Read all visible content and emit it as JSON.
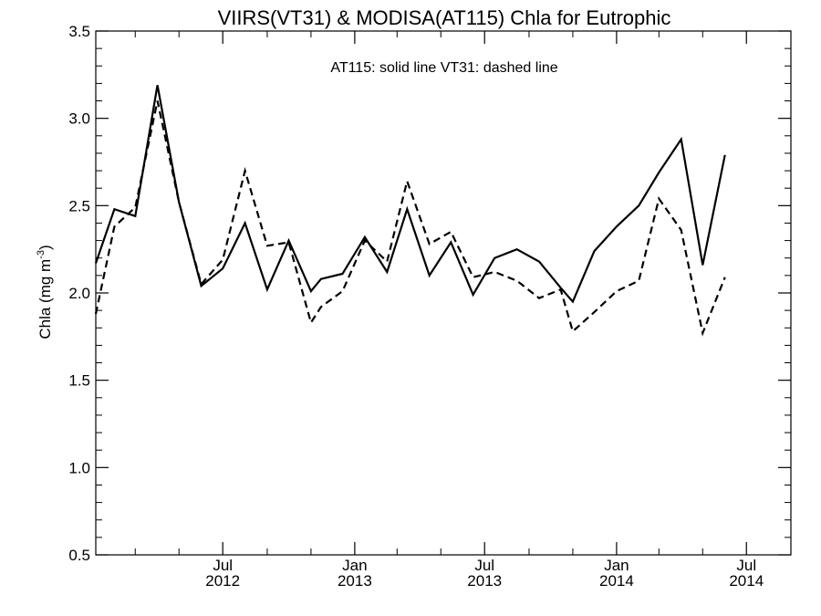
{
  "chart_data": {
    "type": "line",
    "title": "VIIRS(VT31) & MODISA(AT115)  Chla for Eutrophic",
    "annotation": "AT115: solid line   VT31: dashed line",
    "ylabel_main": "Chla (mg m",
    "ylabel_sup": "-3",
    "ylabel_end": ")",
    "ylim": [
      0.5,
      3.5
    ],
    "y_ticks": [
      0.5,
      1.0,
      1.5,
      2.0,
      2.5,
      3.0,
      3.5
    ],
    "y_tick_labels": [
      "0.5",
      "1.0",
      "1.5",
      "2.0",
      "2.5",
      "3.0",
      "3.5"
    ],
    "xlim": [
      "2012-01-06",
      "2014-09-01"
    ],
    "x_major_ticks": [
      {
        "date": "2012-07-01",
        "label_top": "Jul",
        "label_bottom": "2012"
      },
      {
        "date": "2013-01-01",
        "label_top": "Jan",
        "label_bottom": "2013"
      },
      {
        "date": "2013-07-01",
        "label_top": "Jul",
        "label_bottom": "2013"
      },
      {
        "date": "2014-01-01",
        "label_top": "Jan",
        "label_bottom": "2014"
      },
      {
        "date": "2014-07-01",
        "label_top": "Jul",
        "label_bottom": "2014"
      }
    ],
    "x_minor_ticks": [
      "2012-03-01",
      "2012-05-01",
      "2012-09-01",
      "2012-11-01",
      "2013-03-01",
      "2013-05-01",
      "2013-09-01",
      "2013-11-01",
      "2014-03-01",
      "2014-05-01"
    ],
    "grid": false,
    "series": [
      {
        "name": "AT115",
        "style": "solid",
        "color": "#000000",
        "points": [
          [
            "2012-01-06",
            2.17
          ],
          [
            "2012-02-01",
            2.48
          ],
          [
            "2012-03-01",
            2.44
          ],
          [
            "2012-04-01",
            3.19
          ],
          [
            "2012-05-01",
            2.52
          ],
          [
            "2012-06-01",
            2.04
          ],
          [
            "2012-07-01",
            2.14
          ],
          [
            "2012-08-01",
            2.4
          ],
          [
            "2012-09-01",
            2.02
          ],
          [
            "2012-10-01",
            2.3
          ],
          [
            "2012-11-01",
            2.01
          ],
          [
            "2012-11-15",
            2.08
          ],
          [
            "2012-12-15",
            2.11
          ],
          [
            "2013-01-15",
            2.32
          ],
          [
            "2013-02-15",
            2.12
          ],
          [
            "2013-03-15",
            2.48
          ],
          [
            "2013-04-15",
            2.1
          ],
          [
            "2013-05-15",
            2.29
          ],
          [
            "2013-06-15",
            1.99
          ],
          [
            "2013-07-15",
            2.2
          ],
          [
            "2013-08-15",
            2.25
          ],
          [
            "2013-09-15",
            2.18
          ],
          [
            "2013-10-15",
            2.03
          ],
          [
            "2013-11-01",
            1.95
          ],
          [
            "2013-12-01",
            2.24
          ],
          [
            "2014-01-01",
            2.38
          ],
          [
            "2014-02-01",
            2.5
          ],
          [
            "2014-03-01",
            2.69
          ],
          [
            "2014-04-01",
            2.88
          ],
          [
            "2014-05-01",
            2.16
          ],
          [
            "2014-06-01",
            2.79
          ]
        ]
      },
      {
        "name": "VT31",
        "style": "dashed",
        "color": "#000000",
        "points": [
          [
            "2012-01-06",
            1.88
          ],
          [
            "2012-02-01",
            2.38
          ],
          [
            "2012-03-01",
            2.49
          ],
          [
            "2012-04-01",
            3.1
          ],
          [
            "2012-05-01",
            2.52
          ],
          [
            "2012-06-01",
            2.05
          ],
          [
            "2012-07-01",
            2.19
          ],
          [
            "2012-08-01",
            2.7
          ],
          [
            "2012-09-01",
            2.27
          ],
          [
            "2012-10-01",
            2.29
          ],
          [
            "2012-11-01",
            1.83
          ],
          [
            "2012-11-15",
            1.92
          ],
          [
            "2012-12-15",
            2.01
          ],
          [
            "2013-01-15",
            2.3
          ],
          [
            "2013-02-15",
            2.18
          ],
          [
            "2013-03-15",
            2.64
          ],
          [
            "2013-04-15",
            2.28
          ],
          [
            "2013-05-15",
            2.35
          ],
          [
            "2013-06-15",
            2.09
          ],
          [
            "2013-07-15",
            2.12
          ],
          [
            "2013-08-15",
            2.07
          ],
          [
            "2013-09-15",
            1.97
          ],
          [
            "2013-10-15",
            2.02
          ],
          [
            "2013-11-01",
            1.78
          ],
          [
            "2013-12-01",
            1.89
          ],
          [
            "2014-01-01",
            2.01
          ],
          [
            "2014-02-01",
            2.07
          ],
          [
            "2014-03-01",
            2.54
          ],
          [
            "2014-04-01",
            2.36
          ],
          [
            "2014-05-01",
            1.77
          ],
          [
            "2014-06-01",
            2.09
          ]
        ]
      }
    ]
  }
}
